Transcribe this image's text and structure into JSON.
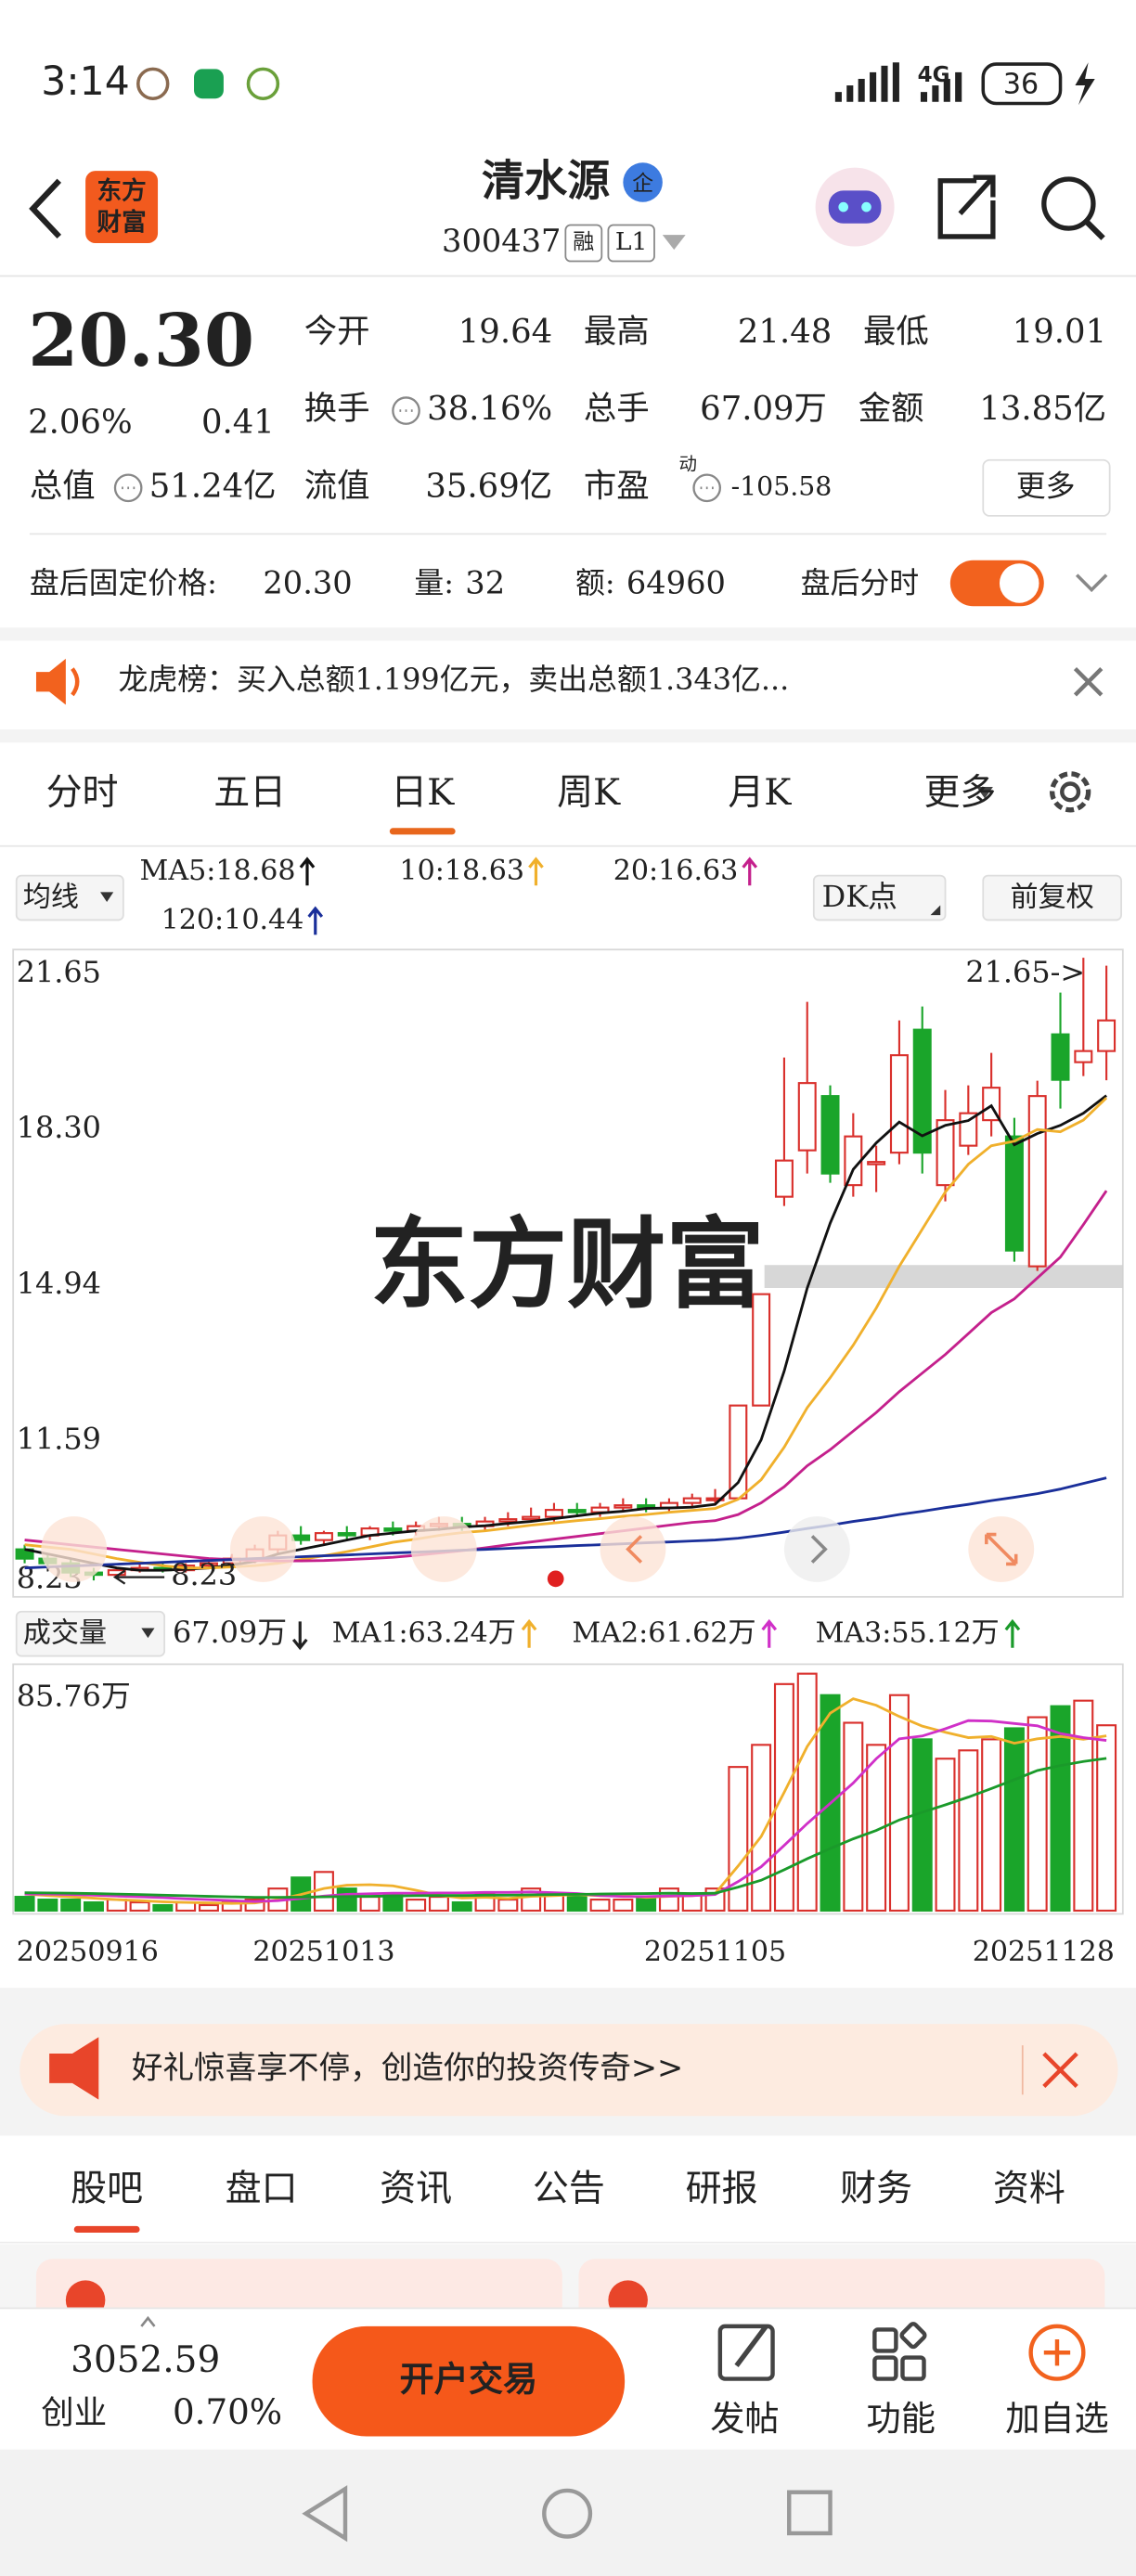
{
  "status_bar": {
    "time": "3:14",
    "network": "4G",
    "battery": "36"
  },
  "header": {
    "logo": [
      "东方",
      "财富"
    ],
    "title": "清水源",
    "badge": "企",
    "code": "300437",
    "tags": [
      "融",
      "L1"
    ]
  },
  "quote": {
    "price": "20.30",
    "change_pct": "2.06%",
    "change": "0.41",
    "more": "更多",
    "fields": [
      {
        "label": "今开",
        "value": "19.64",
        "color": "#1aa52a"
      },
      {
        "label": "最高",
        "value": "21.48",
        "color": "#d9302c"
      },
      {
        "label": "最低",
        "value": "19.01",
        "color": "#1aa52a"
      },
      {
        "label": "换手",
        "value": "38.16%"
      },
      {
        "label": "总手",
        "value": "67.09万"
      },
      {
        "label": "金额",
        "value": "13.85亿"
      },
      {
        "label": "总值",
        "value": "51.24亿"
      },
      {
        "label": "流值",
        "value": "35.69亿"
      },
      {
        "label": "市盈",
        "value": "-105.58",
        "superscript": "动"
      }
    ]
  },
  "after_hours": {
    "label": "盘后固定价格:",
    "price": "20.30",
    "volume_label": "量:",
    "volume": "32",
    "amount_label": "额:",
    "amount": "64960",
    "toggle_label": "盘后分时"
  },
  "notice": "龙虎榜：买入总额1.199亿元，卖出总额1.343亿...",
  "chart_tabs": {
    "items": [
      "分时",
      "五日",
      "日K",
      "周K",
      "月K",
      "更多"
    ],
    "selected": 2
  },
  "chart_data": {
    "type": "candlestick",
    "indicator_label": "均线",
    "buttons": [
      "DK点",
      "前复权"
    ],
    "watermark": "东方财富",
    "max_label": "21.65->",
    "min_label": "8.23",
    "up_color": "#d9302c",
    "down_color": "#1aa52a",
    "grid": false,
    "categories": [
      "20250916",
      null,
      null,
      null,
      null,
      null,
      null,
      null,
      null,
      null,
      null,
      null,
      null,
      "20251013",
      null,
      null,
      null,
      null,
      null,
      null,
      null,
      null,
      null,
      null,
      null,
      null,
      null,
      null,
      null,
      null,
      "20251105",
      null,
      null,
      null,
      null,
      null,
      null,
      null,
      null,
      null,
      null,
      null,
      null,
      null,
      null,
      null,
      null,
      "20251128"
    ],
    "open": [
      8.9,
      8.7,
      8.6,
      8.4,
      8.35,
      8.45,
      8.5,
      8.45,
      8.55,
      8.6,
      8.7,
      8.9,
      9.2,
      9.1,
      9.25,
      9.2,
      9.35,
      9.3,
      9.4,
      9.45,
      9.4,
      9.5,
      9.55,
      9.6,
      9.75,
      9.7,
      9.8,
      9.85,
      9.8,
      9.9,
      10.0,
      10.0,
      12.0,
      16.5,
      17.5,
      18.67,
      16.75,
      17.2,
      17.45,
      20.1,
      16.75,
      17.6,
      18.15,
      17.8,
      15.0,
      20.0,
      19.4,
      19.64
    ],
    "high": [
      9.0,
      8.8,
      8.7,
      8.5,
      8.5,
      8.6,
      8.6,
      8.6,
      8.7,
      8.8,
      9.0,
      9.3,
      9.4,
      9.3,
      9.4,
      9.4,
      9.5,
      9.5,
      9.6,
      9.6,
      9.6,
      9.7,
      9.8,
      9.9,
      9.9,
      9.9,
      10.0,
      10.0,
      10.0,
      10.1,
      10.2,
      12.0,
      14.4,
      19.5,
      20.7,
      18.9,
      18.3,
      17.6,
      20.3,
      20.6,
      18.8,
      18.9,
      19.6,
      18.2,
      19.0,
      20.9,
      21.65,
      21.48
    ],
    "low": [
      8.6,
      8.5,
      8.3,
      8.23,
      8.3,
      8.4,
      8.4,
      8.4,
      8.5,
      8.5,
      8.6,
      8.8,
      9.0,
      9.0,
      9.1,
      9.1,
      9.2,
      9.2,
      9.3,
      9.3,
      9.3,
      9.4,
      9.5,
      9.5,
      9.6,
      9.6,
      9.7,
      9.7,
      9.7,
      9.8,
      9.9,
      10.0,
      12.0,
      16.3,
      17.0,
      16.8,
      16.5,
      16.6,
      17.2,
      17.0,
      16.4,
      17.4,
      17.8,
      15.1,
      14.9,
      18.4,
      19.1,
      19.01
    ],
    "close": [
      8.7,
      8.6,
      8.4,
      8.35,
      8.45,
      8.5,
      8.45,
      8.55,
      8.6,
      8.7,
      8.9,
      9.2,
      9.1,
      9.25,
      9.2,
      9.35,
      9.3,
      9.4,
      9.45,
      9.4,
      9.5,
      9.55,
      9.6,
      9.75,
      9.7,
      9.8,
      9.85,
      9.8,
      9.9,
      10.0,
      10.0,
      12.0,
      14.4,
      17.28,
      18.95,
      17.0,
      17.8,
      17.25,
      19.55,
      17.45,
      18.15,
      18.3,
      18.85,
      15.34,
      18.67,
      19.02,
      19.64,
      20.3
    ],
    "ylim": [
      8.23,
      21.65
    ],
    "yticks": [
      21.65,
      {
        "value": 18.3,
        "label": "18.30"
      },
      14.94,
      11.59,
      8.23
    ],
    "series": [
      {
        "name": "MA5:18.68",
        "color": "#111111",
        "values": [
          8.9,
          8.8,
          8.7,
          8.6,
          8.5,
          8.45,
          8.45,
          8.47,
          8.5,
          8.56,
          8.64,
          8.8,
          8.9,
          9.0,
          9.1,
          9.2,
          9.25,
          9.3,
          9.33,
          9.38,
          9.41,
          9.46,
          9.5,
          9.56,
          9.62,
          9.68,
          9.72,
          9.78,
          9.79,
          9.81,
          9.87,
          10.34,
          11.26,
          12.74,
          14.53,
          15.93,
          17.09,
          17.66,
          18.11,
          17.81,
          18.04,
          18.14,
          18.46,
          17.62,
          17.86,
          18.04,
          18.3,
          18.68
        ]
      },
      {
        "name": "10:18.63",
        "color": "#f0b02c",
        "values": [
          9.0,
          8.95,
          8.9,
          8.8,
          8.7,
          8.62,
          8.55,
          8.5,
          8.5,
          8.52,
          8.55,
          8.6,
          8.68,
          8.76,
          8.85,
          8.95,
          9.05,
          9.12,
          9.2,
          9.26,
          9.3,
          9.36,
          9.42,
          9.47,
          9.52,
          9.56,
          9.61,
          9.65,
          9.7,
          9.74,
          9.78,
          9.98,
          10.4,
          11.1,
          11.95,
          12.6,
          13.3,
          14.1,
          15.0,
          15.8,
          16.6,
          17.2,
          17.6,
          17.7,
          17.95,
          17.9,
          18.15,
          18.63
        ]
      },
      {
        "name": "20:16.63",
        "color": "#c4208c",
        "values": [
          9.1,
          9.05,
          9.0,
          8.95,
          8.9,
          8.85,
          8.8,
          8.75,
          8.7,
          8.68,
          8.66,
          8.65,
          8.65,
          8.66,
          8.68,
          8.7,
          8.73,
          8.77,
          8.82,
          8.87,
          8.93,
          9.0,
          9.06,
          9.12,
          9.18,
          9.24,
          9.3,
          9.36,
          9.42,
          9.48,
          9.52,
          9.65,
          9.9,
          10.25,
          10.7,
          11.05,
          11.45,
          11.85,
          12.3,
          12.7,
          13.1,
          13.55,
          14.0,
          14.3,
          14.75,
          15.2,
          15.9,
          16.63
        ]
      },
      {
        "name": "120:10.44",
        "color": "#1a2f9a",
        "values": [
          8.5,
          8.52,
          8.54,
          8.56,
          8.58,
          8.6,
          8.62,
          8.64,
          8.66,
          8.68,
          8.7,
          8.72,
          8.74,
          8.76,
          8.78,
          8.8,
          8.82,
          8.84,
          8.86,
          8.88,
          8.9,
          8.92,
          8.94,
          8.96,
          8.98,
          9.0,
          9.02,
          9.04,
          9.06,
          9.08,
          9.1,
          9.14,
          9.2,
          9.27,
          9.35,
          9.42,
          9.5,
          9.57,
          9.65,
          9.72,
          9.8,
          9.87,
          9.95,
          10.02,
          10.1,
          10.2,
          10.32,
          10.44
        ]
      }
    ],
    "volume": {
      "label": "成交量",
      "current": "67.09万",
      "values": [
        5,
        4,
        4,
        3,
        4,
        3,
        2,
        3,
        2,
        3,
        4,
        8,
        12,
        14,
        8,
        5,
        6,
        4,
        5,
        3,
        6,
        4,
        8,
        6,
        5,
        4,
        4,
        5,
        8,
        6,
        8,
        52,
        60,
        82,
        85.76,
        78,
        68,
        60,
        78,
        62,
        55,
        58,
        62,
        66,
        70,
        74,
        76,
        67.09
      ],
      "ylim": [
        0,
        88
      ],
      "yticks": [
        {
          "value": 85.76,
          "label": "85.76万"
        }
      ],
      "series": [
        {
          "name": "MA1:63.24万",
          "color": "#f0b02c",
          "values": [
            6,
            5.5,
            5,
            4.5,
            4,
            3.6,
            3.2,
            3,
            2.8,
            2.6,
            2.8,
            4,
            5.8,
            8,
            9.2,
            9.4,
            9,
            7.4,
            5.6,
            4.6,
            4.8,
            4.4,
            5.2,
            5.4,
            5.8,
            5.4,
            5.4,
            4.8,
            5.2,
            5.4,
            6.2,
            16.2,
            26.8,
            42.8,
            59.4,
            71.5,
            76.7,
            74.3,
            70.3,
            66.8,
            64.6,
            62.6,
            63,
            60.6,
            62.2,
            63,
            62,
            63.24
          ]
        },
        {
          "name": "MA2:61.62万",
          "color": "#d030c8",
          "values": [
            6,
            6,
            5.8,
            5.6,
            5.3,
            5,
            4.7,
            4.3,
            4,
            3.6,
            3.3,
            3.6,
            4.4,
            5.3,
            5.9,
            6.1,
            6.3,
            6.3,
            6.4,
            6.4,
            6.6,
            6.6,
            6.8,
            6.5,
            6.2,
            5.5,
            5.1,
            5.1,
            5.3,
            5.4,
            5.8,
            10.5,
            15.9,
            23.6,
            31.5,
            38.8,
            46.2,
            55,
            62.2,
            63.2,
            65.8,
            68.8,
            68.6,
            67.7,
            66.9,
            64.1,
            62.6,
            61.62
          ]
        },
        {
          "name": "MA3:55.12万",
          "color": "#1a9a2a",
          "values": [
            6.5,
            6.4,
            6.3,
            6.2,
            6,
            5.8,
            5.6,
            5.4,
            5.2,
            5,
            4.8,
            4.8,
            4.9,
            5,
            5.1,
            5.2,
            5.3,
            5.4,
            5.5,
            5.5,
            5.6,
            5.6,
            5.7,
            5.8,
            5.9,
            6,
            6.1,
            6.2,
            6.3,
            6.2,
            6.3,
            8.5,
            11,
            14.8,
            18.8,
            22.5,
            26,
            29,
            32.8,
            35.6,
            38.3,
            41.1,
            44.2,
            47.4,
            50.7,
            52.5,
            54,
            55.12
          ]
        }
      ]
    }
  },
  "ad_banner": "好礼惊喜享不停，创造你的投资传奇>>",
  "content_tabs": {
    "items": [
      "股吧",
      "盘口",
      "资讯",
      "公告",
      "研报",
      "财务",
      "资料"
    ],
    "selected": 0
  },
  "bottom_bar": {
    "index_value": "3052.59",
    "index_name": "创业",
    "index_change": "0.70%",
    "trade_button": "开户交易",
    "actions": [
      "发帖",
      "功能",
      "加自选"
    ]
  }
}
